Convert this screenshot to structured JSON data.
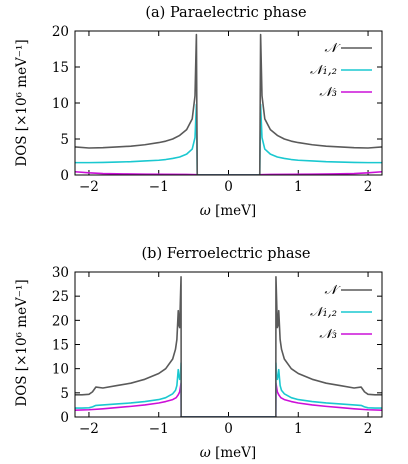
{
  "chart_data": [
    {
      "type": "line",
      "title": "(a) Paraelectric phase",
      "xlabel_symbol": "ω",
      "xlabel_unit": " [meV]",
      "ylabel": "DOS [×10⁶ meV⁻¹]",
      "xlim": [
        -2.2,
        2.2
      ],
      "ylim": [
        0,
        20
      ],
      "xticks": [
        -2,
        -1,
        0,
        1,
        2
      ],
      "xtick_labels": [
        "−2",
        "−1",
        "0",
        "1",
        "2"
      ],
      "yticks": [
        0,
        5,
        10,
        15,
        20
      ],
      "ytick_labels": [
        "0",
        "5",
        "10",
        "15",
        "20"
      ],
      "legend_position": "top-right",
      "gap_edge": 0.45,
      "series": [
        {
          "name": "𝒩",
          "color": "#5a5a5a",
          "x": [
            0.46,
            0.48,
            0.52,
            0.6,
            0.7,
            0.8,
            0.9,
            1.0,
            1.2,
            1.4,
            1.6,
            1.8,
            2.0,
            2.2
          ],
          "y": [
            19.5,
            11.0,
            7.8,
            6.3,
            5.5,
            5.0,
            4.7,
            4.5,
            4.2,
            4.0,
            3.9,
            3.8,
            3.75,
            3.9
          ]
        },
        {
          "name": "𝒩₁,₂",
          "color": "#1ac8d0",
          "x": [
            0.46,
            0.48,
            0.52,
            0.6,
            0.7,
            0.8,
            0.9,
            1.0,
            1.2,
            1.4,
            1.6,
            1.8,
            2.0,
            2.2
          ],
          "y": [
            9.8,
            5.2,
            3.6,
            2.9,
            2.5,
            2.3,
            2.15,
            2.05,
            1.95,
            1.85,
            1.8,
            1.75,
            1.72,
            1.72
          ]
        },
        {
          "name": "𝒩₃",
          "color": "#cc10d8",
          "x": [
            0.46,
            0.6,
            0.9,
            1.2,
            1.5,
            1.8,
            2.0,
            2.2
          ],
          "y": [
            0.05,
            0.08,
            0.1,
            0.12,
            0.15,
            0.2,
            0.3,
            0.45
          ]
        }
      ]
    },
    {
      "type": "line",
      "title": "(b) Ferroelectric phase",
      "xlabel_symbol": "ω",
      "xlabel_unit": " [meV]",
      "ylabel": "DOS [×10⁶ meV⁻¹]",
      "xlim": [
        -2.2,
        2.2
      ],
      "ylim": [
        0,
        30
      ],
      "xticks": [
        -2,
        -1,
        0,
        1,
        2
      ],
      "xtick_labels": [
        "−2",
        "−1",
        "0",
        "1",
        "2"
      ],
      "yticks": [
        0,
        5,
        10,
        15,
        20,
        25,
        30
      ],
      "ytick_labels": [
        "0",
        "5",
        "10",
        "15",
        "20",
        "25",
        "30"
      ],
      "legend_position": "top-right",
      "gap_edge": 0.68,
      "series": [
        {
          "name": "𝒩",
          "color": "#5a5a5a",
          "x": [
            0.68,
            0.69,
            0.7,
            0.71,
            0.72,
            0.74,
            0.76,
            0.8,
            0.9,
            1.0,
            1.2,
            1.4,
            1.6,
            1.8,
            1.9,
            1.95,
            2.0,
            2.1,
            2.2
          ],
          "y": [
            29.0,
            24.0,
            18.5,
            19.0,
            22.0,
            16.0,
            14.0,
            12.0,
            10.0,
            9.0,
            7.8,
            7.0,
            6.5,
            6.0,
            6.2,
            5.2,
            4.7,
            4.6,
            4.6
          ]
        },
        {
          "name": "𝒩₁,₂",
          "color": "#1ac8d0",
          "x": [
            0.68,
            0.69,
            0.7,
            0.71,
            0.72,
            0.74,
            0.76,
            0.8,
            0.9,
            1.0,
            1.2,
            1.4,
            1.6,
            1.8,
            1.9,
            1.95,
            2.0,
            2.1,
            2.2
          ],
          "y": [
            11.2,
            8.0,
            7.8,
            8.6,
            9.8,
            6.5,
            5.5,
            4.8,
            4.0,
            3.6,
            3.2,
            2.9,
            2.7,
            2.5,
            2.4,
            2.1,
            1.9,
            1.85,
            1.85
          ]
        },
        {
          "name": "𝒩₃",
          "color": "#cc10d8",
          "x": [
            0.68,
            0.7,
            0.72,
            0.75,
            0.8,
            0.9,
            1.0,
            1.2,
            1.4,
            1.6,
            1.8,
            2.0,
            2.2
          ],
          "y": [
            7.0,
            5.2,
            4.6,
            4.0,
            3.6,
            3.2,
            2.9,
            2.5,
            2.2,
            1.95,
            1.7,
            1.5,
            1.4
          ]
        }
      ]
    }
  ]
}
